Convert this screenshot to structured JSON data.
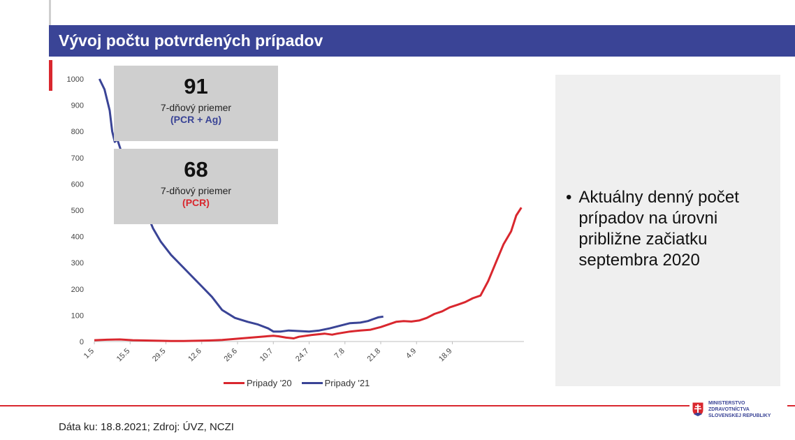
{
  "title": "Vývoj počtu potvrdených prípadov",
  "stats": [
    {
      "value": "91",
      "label": "7-dňový priemer",
      "sub": "(PCR + Ag)",
      "sub_color": "#3a4496"
    },
    {
      "value": "68",
      "label": "7-dňový priemer",
      "sub": "(PCR)",
      "sub_color": "#d9272e"
    }
  ],
  "bullet": "Aktuálny denný počet prípadov na úrovni približne začiatku septembra 2020",
  "footer": "Dáta ku: 18.8.2021; Zdroj: ÚVZ, NCZI",
  "logo": {
    "line1": "MINISTERSTVO",
    "line2": "ZDRAVOTNÍCTVA",
    "line3": "SLOVENSKEJ REPUBLIKY"
  },
  "colors": {
    "series_2020": "#d9272e",
    "series_2021": "#3a4496",
    "title_bar": "#3a4496",
    "accent_red": "#d9272e"
  },
  "chart_data": {
    "type": "line",
    "title": "",
    "xlabel": "",
    "ylabel": "",
    "ylim": [
      0,
      1000
    ],
    "yticks": [
      0,
      100,
      200,
      300,
      400,
      500,
      600,
      700,
      800,
      900,
      1000
    ],
    "xlim": [
      0,
      168
    ],
    "xticks": [
      {
        "day": 0,
        "label": "1.5"
      },
      {
        "day": 14,
        "label": "15.5"
      },
      {
        "day": 28,
        "label": "29.5"
      },
      {
        "day": 42,
        "label": "12.6"
      },
      {
        "day": 56,
        "label": "26.6"
      },
      {
        "day": 70,
        "label": "10.7"
      },
      {
        "day": 84,
        "label": "24.7"
      },
      {
        "day": 98,
        "label": "7.8"
      },
      {
        "day": 112,
        "label": "21.8"
      },
      {
        "day": 126,
        "label": "4.9"
      },
      {
        "day": 140,
        "label": "18.9"
      }
    ],
    "grid": false,
    "legend_position": "bottom",
    "series": [
      {
        "name": "Pripady '20",
        "color": "#d9272e",
        "points": [
          [
            0,
            5
          ],
          [
            5,
            7
          ],
          [
            10,
            8
          ],
          [
            15,
            5
          ],
          [
            20,
            4
          ],
          [
            25,
            3
          ],
          [
            30,
            2
          ],
          [
            35,
            2
          ],
          [
            40,
            3
          ],
          [
            45,
            4
          ],
          [
            50,
            6
          ],
          [
            55,
            10
          ],
          [
            60,
            14
          ],
          [
            65,
            18
          ],
          [
            70,
            22
          ],
          [
            72,
            20
          ],
          [
            75,
            15
          ],
          [
            78,
            12
          ],
          [
            80,
            18
          ],
          [
            85,
            25
          ],
          [
            90,
            30
          ],
          [
            93,
            26
          ],
          [
            95,
            30
          ],
          [
            100,
            38
          ],
          [
            104,
            42
          ],
          [
            108,
            45
          ],
          [
            112,
            55
          ],
          [
            115,
            65
          ],
          [
            118,
            75
          ],
          [
            121,
            78
          ],
          [
            124,
            76
          ],
          [
            127,
            80
          ],
          [
            130,
            90
          ],
          [
            133,
            105
          ],
          [
            136,
            115
          ],
          [
            139,
            130
          ],
          [
            142,
            140
          ],
          [
            145,
            150
          ],
          [
            148,
            165
          ],
          [
            151,
            175
          ],
          [
            154,
            230
          ],
          [
            157,
            300
          ],
          [
            160,
            370
          ],
          [
            163,
            420
          ],
          [
            165,
            480
          ],
          [
            167,
            510
          ]
        ]
      },
      {
        "name": "Pripady '21",
        "color": "#3a4496",
        "points": [
          [
            2,
            1000
          ],
          [
            4,
            960
          ],
          [
            6,
            880
          ],
          [
            7,
            800
          ],
          [
            8,
            760
          ],
          [
            9,
            770
          ],
          [
            10,
            740
          ],
          [
            12,
            680
          ],
          [
            15,
            620
          ],
          [
            17,
            560
          ],
          [
            20,
            500
          ],
          [
            23,
            430
          ],
          [
            26,
            380
          ],
          [
            30,
            330
          ],
          [
            34,
            290
          ],
          [
            38,
            250
          ],
          [
            42,
            210
          ],
          [
            46,
            170
          ],
          [
            50,
            120
          ],
          [
            55,
            90
          ],
          [
            60,
            75
          ],
          [
            64,
            65
          ],
          [
            68,
            50
          ],
          [
            70,
            38
          ],
          [
            73,
            38
          ],
          [
            76,
            42
          ],
          [
            80,
            40
          ],
          [
            84,
            38
          ],
          [
            88,
            42
          ],
          [
            92,
            50
          ],
          [
            96,
            60
          ],
          [
            100,
            70
          ],
          [
            104,
            72
          ],
          [
            107,
            78
          ],
          [
            109,
            85
          ],
          [
            111,
            92
          ],
          [
            113,
            95
          ]
        ]
      }
    ]
  }
}
